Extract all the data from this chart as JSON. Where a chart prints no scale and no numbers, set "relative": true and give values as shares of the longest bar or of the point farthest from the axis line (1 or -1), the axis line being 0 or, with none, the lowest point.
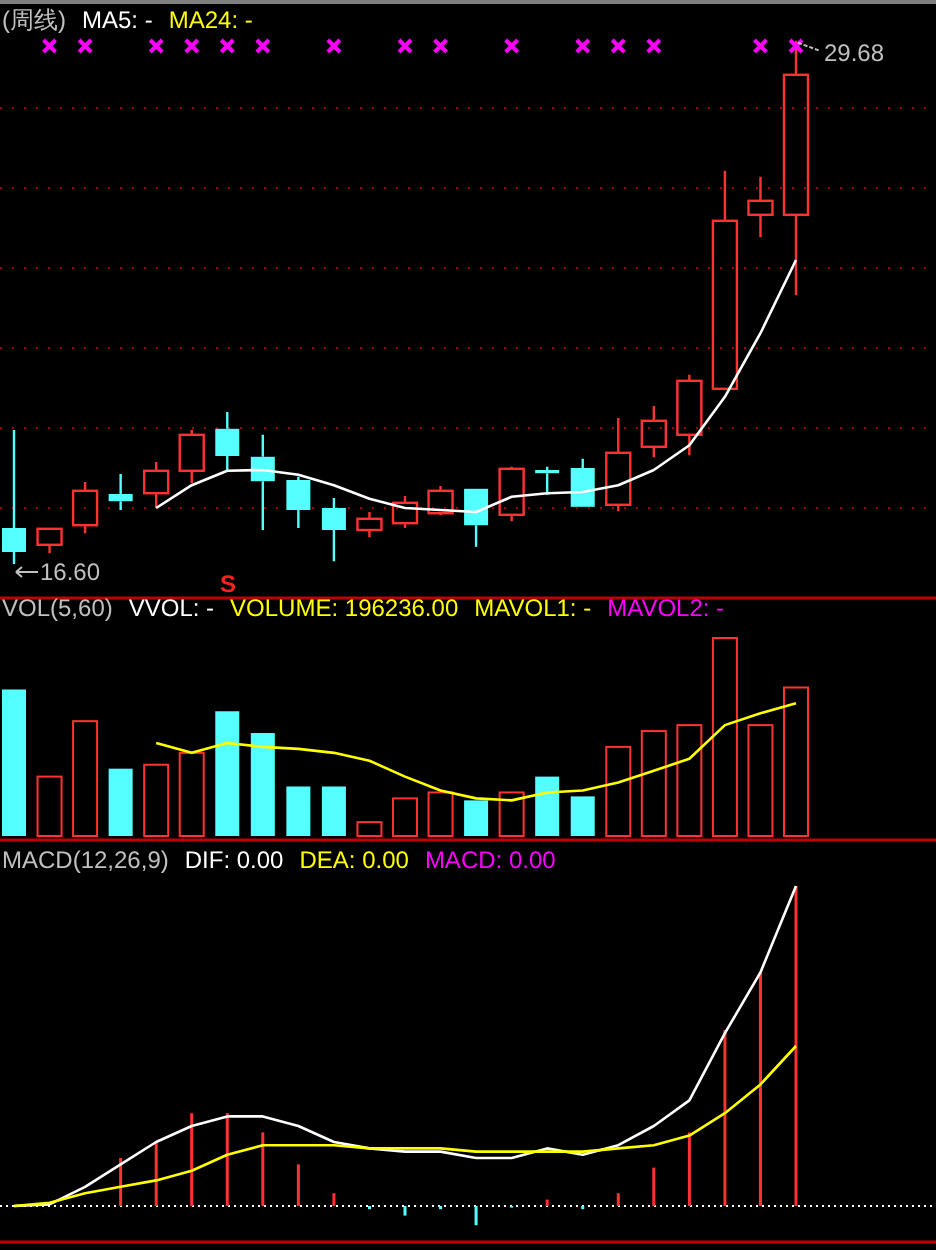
{
  "chart_data": [
    {
      "type": "candlestick",
      "title": "(周线)",
      "annotations": [
        "MA5: -",
        "MA24: -",
        "S",
        "16.60",
        "29.68"
      ],
      "categories": [
        null,
        null,
        null,
        null,
        null,
        null,
        null,
        null,
        null,
        null,
        null,
        null,
        null,
        null,
        null,
        null,
        null,
        null,
        null,
        null,
        null,
        null,
        null
      ],
      "ohlc": [
        [
          17.5,
          19.95,
          16.6,
          16.9
        ],
        [
          17.08,
          17.48,
          16.87,
          17.48
        ],
        [
          17.57,
          18.65,
          17.37,
          18.43
        ],
        [
          18.35,
          18.85,
          17.95,
          18.17
        ],
        [
          18.37,
          19.15,
          18.0,
          18.93
        ],
        [
          18.93,
          19.95,
          18.62,
          19.83
        ],
        [
          19.98,
          20.4,
          18.95,
          19.3
        ],
        [
          19.28,
          19.83,
          17.45,
          18.67
        ],
        [
          18.7,
          18.78,
          17.5,
          17.95
        ],
        [
          18.0,
          18.25,
          16.67,
          17.45
        ],
        [
          17.45,
          17.9,
          17.27,
          17.73
        ],
        [
          17.62,
          18.3,
          17.5,
          18.13
        ],
        [
          17.87,
          18.55,
          17.82,
          18.43
        ],
        [
          18.48,
          18.48,
          17.03,
          17.57
        ],
        [
          17.83,
          19.03,
          17.67,
          18.98
        ],
        [
          18.95,
          19.03,
          18.33,
          18.87
        ],
        [
          19.0,
          19.23,
          18.03,
          18.03
        ],
        [
          18.08,
          20.25,
          17.92,
          19.38
        ],
        [
          19.53,
          20.55,
          19.27,
          20.18
        ],
        [
          19.83,
          21.33,
          19.32,
          21.18
        ],
        [
          20.98,
          26.43,
          20.98,
          25.18
        ],
        [
          25.33,
          26.28,
          24.77,
          25.68
        ],
        [
          25.33,
          29.68,
          23.32,
          28.83
        ]
      ],
      "colors": [
        "#54ffff",
        "#ff3232",
        "#ff3232",
        "#54ffff",
        "#ff3232",
        "#ff3232",
        "#54ffff",
        "#54ffff",
        "#54ffff",
        "#54ffff",
        "#ff3232",
        "#ff3232",
        "#ff3232",
        "#54ffff",
        "#ff3232",
        "#54ffff",
        "#54ffff",
        "#ff3232",
        "#ff3232",
        "#ff3232",
        "#ff3232",
        "#ff3232",
        "#ff3232"
      ],
      "series": [
        {
          "type": "line",
          "color": "#ffffff",
          "values": [
            null,
            null,
            null,
            null,
            18.0,
            18.57,
            18.93,
            18.95,
            18.83,
            18.57,
            18.23,
            18.0,
            17.95,
            17.9,
            18.28,
            18.37,
            18.4,
            18.57,
            18.95,
            19.57,
            20.78,
            22.37,
            24.2
          ]
        },
        {
          "type": "scatter",
          "color": "#ff00ff",
          "marker": "cross",
          "values": [
            null,
            29.55,
            29.55,
            null,
            29.55,
            29.55,
            29.55,
            29.55,
            null,
            29.55,
            null,
            29.55,
            29.55,
            null,
            29.55,
            null,
            29.55,
            29.55,
            29.55,
            null,
            null,
            29.55,
            29.55
          ]
        }
      ],
      "ylim": [
        15.75,
        30.65
      ],
      "yticks": [
        {
          "value": 18,
          "label": null
        },
        {
          "value": 20,
          "label": null
        },
        {
          "value": 22,
          "label": null
        },
        {
          "value": 24,
          "label": null
        },
        {
          "value": 26,
          "label": null
        },
        {
          "value": 28,
          "label": null
        }
      ],
      "grid": "y"
    },
    {
      "type": "bar",
      "title": "VOL(5,60)",
      "annotations": [
        "VVOL: -",
        "VOLUME: 196236.00",
        "MAVOL1: -",
        "MAVOL2: -"
      ],
      "relative": true,
      "categories": [
        null,
        null,
        null,
        null,
        null,
        null,
        null,
        null,
        null,
        null,
        null,
        null,
        null,
        null,
        null,
        null,
        null,
        null,
        null,
        null,
        null,
        null,
        null
      ],
      "series": [
        {
          "type": "bar",
          "colors": [
            "#54ffff",
            "#ff3232",
            "#ff3232",
            "#54ffff",
            "#ff3232",
            "#ff3232",
            "#54ffff",
            "#54ffff",
            "#54ffff",
            "#54ffff",
            "#ff3232",
            "#ff3232",
            "#ff3232",
            "#54ffff",
            "#ff3232",
            "#54ffff",
            "#54ffff",
            "#ff3232",
            "#ff3232",
            "#ff3232",
            "#ff3232",
            "#ff3232",
            "#ff3232"
          ],
          "values": [
            0.74,
            0.3,
            0.58,
            0.34,
            0.36,
            0.42,
            0.63,
            0.52,
            0.25,
            0.25,
            0.07,
            0.19,
            0.22,
            0.18,
            0.22,
            0.3,
            0.2,
            0.45,
            0.53,
            0.56,
            1,
            0.56,
            0.75
          ]
        },
        {
          "type": "line",
          "color": "#ffff00",
          "values": [
            null,
            null,
            null,
            null,
            0.47,
            0.42,
            0.47,
            0.45,
            0.44,
            0.42,
            0.38,
            0.3,
            0.23,
            0.19,
            0.18,
            0.22,
            0.23,
            0.27,
            0.33,
            0.39,
            0.56,
            0.62,
            0.67
          ]
        }
      ]
    },
    {
      "type": "bar",
      "title": "MACD(12,26,9)",
      "annotations": [
        "DIF: 0.00",
        "DEA: 0.00",
        "MACD: 0.00"
      ],
      "relative": true,
      "ref_lines": [
        {
          "axis": "y",
          "value": 0,
          "color": "#ffffff",
          "line_style": "dotted"
        }
      ],
      "categories": [
        null,
        null,
        null,
        null,
        null,
        null,
        null,
        null,
        null,
        null,
        null,
        null,
        null,
        null,
        null,
        null,
        null,
        null,
        null,
        null,
        null,
        null,
        null
      ],
      "series": [
        {
          "type": "bar",
          "colors": [
            null,
            null,
            null,
            "#ff3232",
            "#ff3232",
            "#ff3232",
            "#ff3232",
            "#ff3232",
            "#ff3232",
            "#ff3232",
            "#54ffff",
            "#54ffff",
            "#54ffff",
            "#54ffff",
            "#54ffff",
            "#ff3232",
            "#54ffff",
            "#ff3232",
            "#ff3232",
            "#ff3232",
            "#ff3232",
            "#ff3232",
            "#ff3232"
          ],
          "values": [
            null,
            null,
            null,
            0.15,
            0.2,
            0.29,
            0.29,
            0.23,
            0.13,
            0.04,
            -0.01,
            -0.03,
            -0.01,
            -0.06,
            -0.005,
            0.02,
            -0.01,
            0.04,
            0.12,
            0.23,
            0.55,
            0.73,
            1
          ]
        },
        {
          "type": "line",
          "color": "#ffffff",
          "values": [
            0,
            0.005,
            0.06,
            0.13,
            0.2,
            0.25,
            0.28,
            0.28,
            0.25,
            0.2,
            0.18,
            0.17,
            0.17,
            0.15,
            0.15,
            0.18,
            0.16,
            0.19,
            0.25,
            0.33,
            0.54,
            0.73,
            1
          ]
        },
        {
          "type": "line",
          "color": "#ffff00",
          "values": [
            0,
            0.01,
            0.04,
            0.06,
            0.08,
            0.11,
            0.16,
            0.19,
            0.19,
            0.19,
            0.18,
            0.18,
            0.18,
            0.17,
            0.17,
            0.17,
            0.17,
            0.18,
            0.19,
            0.22,
            0.29,
            0.38,
            0.5
          ]
        }
      ]
    }
  ]
}
